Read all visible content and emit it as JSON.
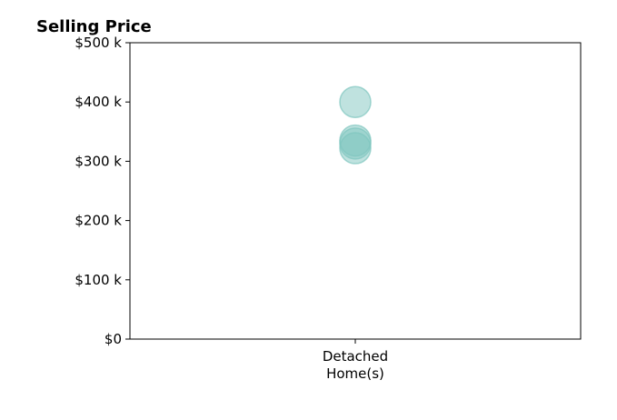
{
  "chart_data": {
    "type": "scatter",
    "title": "Selling Price",
    "xlabel": "",
    "ylabel": "",
    "categories": [
      [
        "Detached",
        "Home(s)"
      ]
    ],
    "ylim": [
      0,
      500000
    ],
    "yticks": [
      {
        "value": 0,
        "label": "$0"
      },
      {
        "value": 100000,
        "label": "$100 k"
      },
      {
        "value": 200000,
        "label": "$200 k"
      },
      {
        "value": 300000,
        "label": "$300 k"
      },
      {
        "value": 400000,
        "label": "$400 k"
      },
      {
        "value": 500000,
        "label": "$500 k"
      }
    ],
    "series": [
      {
        "color": "#7fc6bf",
        "points": [
          {
            "category": 0,
            "y": 400000
          },
          {
            "category": 0,
            "y": 335000
          },
          {
            "category": 0,
            "y": 330000
          },
          {
            "category": 0,
            "y": 322000
          }
        ]
      }
    ],
    "grid": false,
    "legend": "none"
  }
}
